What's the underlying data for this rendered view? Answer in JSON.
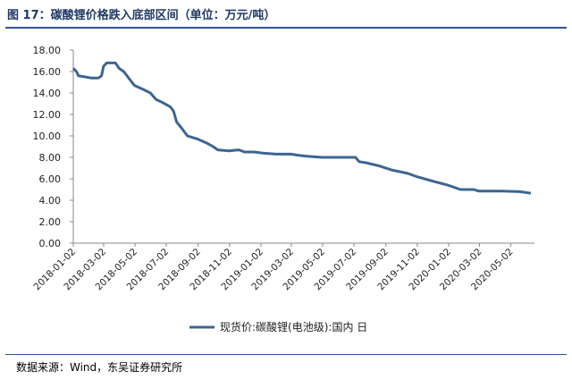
{
  "title": "图 17：碳酸锂价格跌入底部区间（单位：万元/吨）",
  "source": "数据来源：Wind，东吴证券研究所",
  "colors": {
    "line": "#3d6591",
    "header": "#1f3864",
    "rule": "#2f5597"
  },
  "chart_data": {
    "type": "line",
    "title": "",
    "xlabel": "",
    "ylabel": "",
    "ylim": [
      0,
      18
    ],
    "yticks": [
      "0.00",
      "2.00",
      "4.00",
      "6.00",
      "8.00",
      "10.00",
      "12.00",
      "14.00",
      "16.00",
      "18.00"
    ],
    "x_tick_labels": [
      "2018-01-02",
      "2018-03-02",
      "2018-05-02",
      "2018-07-02",
      "2018-09-02",
      "2018-11-02",
      "2019-01-02",
      "2019-03-02",
      "2019-05-02",
      "2019-07-02",
      "2019-09-02",
      "2019-11-02",
      "2020-01-02",
      "2020-03-02",
      "2020-05-02"
    ],
    "grid": false,
    "legend_position": "bottom",
    "series": [
      {
        "name": "现货价:碳酸锂(电池级):国内 日",
        "points": [
          [
            "2018-01-02",
            16.3
          ],
          [
            "2018-01-08",
            16.0
          ],
          [
            "2018-01-12",
            15.6
          ],
          [
            "2018-01-25",
            15.5
          ],
          [
            "2018-02-05",
            15.4
          ],
          [
            "2018-02-20",
            15.4
          ],
          [
            "2018-02-26",
            15.6
          ],
          [
            "2018-03-02",
            16.5
          ],
          [
            "2018-03-08",
            16.8
          ],
          [
            "2018-03-25",
            16.8
          ],
          [
            "2018-04-01",
            16.3
          ],
          [
            "2018-04-10",
            16.0
          ],
          [
            "2018-04-18",
            15.5
          ],
          [
            "2018-04-26",
            15.0
          ],
          [
            "2018-05-01",
            14.7
          ],
          [
            "2018-05-15",
            14.4
          ],
          [
            "2018-06-01",
            14.0
          ],
          [
            "2018-06-12",
            13.4
          ],
          [
            "2018-06-25",
            13.1
          ],
          [
            "2018-07-10",
            12.7
          ],
          [
            "2018-07-16",
            12.3
          ],
          [
            "2018-07-22",
            11.3
          ],
          [
            "2018-08-01",
            10.7
          ],
          [
            "2018-08-12",
            10.0
          ],
          [
            "2018-09-01",
            9.7
          ],
          [
            "2018-09-20",
            9.3
          ],
          [
            "2018-10-01",
            9.0
          ],
          [
            "2018-10-10",
            8.7
          ],
          [
            "2018-11-01",
            8.6
          ],
          [
            "2018-11-20",
            8.7
          ],
          [
            "2018-12-01",
            8.5
          ],
          [
            "2018-12-20",
            8.5
          ],
          [
            "2019-01-05",
            8.4
          ],
          [
            "2019-02-01",
            8.3
          ],
          [
            "2019-03-01",
            8.3
          ],
          [
            "2019-03-15",
            8.2
          ],
          [
            "2019-04-01",
            8.1
          ],
          [
            "2019-05-01",
            8.0
          ],
          [
            "2019-06-01",
            8.0
          ],
          [
            "2019-06-20",
            8.0
          ],
          [
            "2019-07-05",
            8.0
          ],
          [
            "2019-07-12",
            7.6
          ],
          [
            "2019-07-25",
            7.5
          ],
          [
            "2019-08-20",
            7.2
          ],
          [
            "2019-09-15",
            6.8
          ],
          [
            "2019-10-15",
            6.5
          ],
          [
            "2019-11-01",
            6.2
          ],
          [
            "2019-12-01",
            5.8
          ],
          [
            "2020-01-01",
            5.4
          ],
          [
            "2020-01-25",
            5.0
          ],
          [
            "2020-02-20",
            5.0
          ],
          [
            "2020-03-01",
            4.85
          ],
          [
            "2020-03-20",
            4.85
          ],
          [
            "2020-04-15",
            4.85
          ],
          [
            "2020-05-20",
            4.8
          ],
          [
            "2020-06-10",
            4.65
          ]
        ]
      }
    ]
  }
}
